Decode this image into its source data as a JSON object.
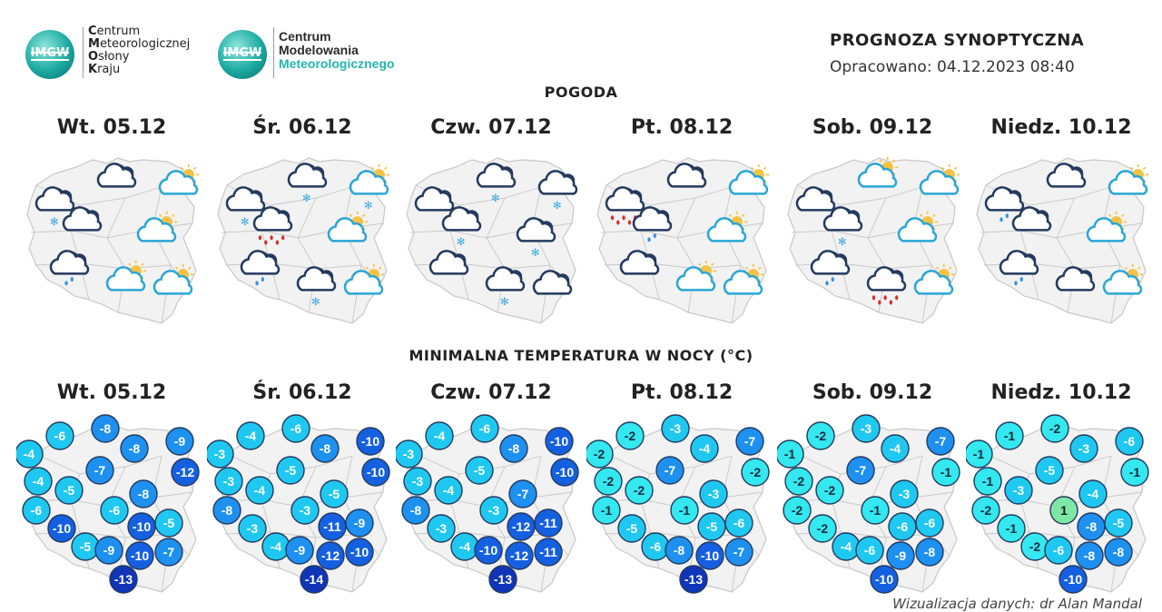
{
  "logos": {
    "imgw_badge": "IMGW",
    "cmok": [
      {
        "first": "C",
        "rest": "entrum"
      },
      {
        "first": "M",
        "rest": "eteorologicznej"
      },
      {
        "first": "O",
        "rest": "słony"
      },
      {
        "first": "K",
        "rest": "raju"
      }
    ],
    "cmm_line1": "Centrum",
    "cmm_line2": "Modelowania",
    "cmm_line3": "Meteorologicznego"
  },
  "header": {
    "title": "PROGNOZA SYNOPTYCZNA",
    "prepared": "Opracowano: 04.12.2023 08:40"
  },
  "sections": {
    "weather": "POGODA",
    "temperature": "MINIMALNA TEMPERATURA W NOCY (°C)"
  },
  "days": [
    "Wt. 05.12",
    "Śr. 06.12",
    "Czw. 07.12",
    "Pt. 08.12",
    "Sob. 09.12",
    "Niedz. 10.12"
  ],
  "weather_icons": [
    [
      "cloudy-snow",
      "cloudy-partly",
      "partly-cloudy-sun",
      "cloudy-partly",
      "partly-cloudy-sun",
      "cloudy-rain",
      "partly-cloudy-sun",
      "partly-cloudy-sun"
    ],
    [
      "cloudy-snow",
      "cloudy-snow",
      "partly-cloudy-sun-snow",
      "cloudy-rain-heavy",
      "partly-cloudy-sun",
      "cloudy-rain",
      "cloudy-snow",
      "partly-cloudy-sun"
    ],
    [
      "cloudy",
      "cloudy-snow",
      "cloudy-snow",
      "cloudy-snow",
      "cloudy-snow",
      "cloudy",
      "cloudy-snow",
      "cloudy"
    ],
    [
      "cloudy-rain-heavy",
      "cloudy-partly",
      "partly-cloudy-sun",
      "cloudy-rain",
      "partly-cloudy-sun",
      "cloudy-partly",
      "partly-cloudy-sun",
      "partly-cloudy-sun"
    ],
    [
      "cloudy",
      "partly-cloudy-sun",
      "partly-cloudy-sun",
      "cloudy-snow",
      "partly-cloudy-sun",
      "cloudy-rain",
      "cloudy-rain-heavy",
      "partly-cloudy-sun"
    ],
    [
      "cloudy-rain",
      "cloudy-partly",
      "partly-cloudy-sun",
      "cloudy-partly",
      "partly-cloudy-sun",
      "cloudy-rain",
      "cloudy-partly",
      "partly-cloudy-sun"
    ]
  ],
  "temperatures": [
    [
      -6,
      -8,
      -4,
      -8,
      -9,
      -4,
      -7,
      -12,
      -5,
      -8,
      -6,
      -6,
      -10,
      -5,
      -10,
      -5,
      -9,
      -10,
      -7,
      -13
    ],
    [
      -4,
      -6,
      -3,
      -8,
      -10,
      -3,
      -5,
      -10,
      -4,
      -5,
      -8,
      -3,
      -11,
      -9,
      -3,
      -4,
      -9,
      -12,
      -10,
      -14
    ],
    [
      -4,
      -6,
      -3,
      -8,
      -10,
      -3,
      -5,
      -10,
      -4,
      -7,
      -8,
      -3,
      -12,
      -11,
      -3,
      -4,
      -10,
      -12,
      -11,
      -13
    ],
    [
      -2,
      -3,
      -2,
      -4,
      -7,
      -2,
      -7,
      -2,
      -2,
      -3,
      -1,
      -1,
      -5,
      -6,
      -5,
      -6,
      -8,
      -10,
      -7,
      -13
    ],
    [
      -2,
      -3,
      -1,
      -4,
      -7,
      -2,
      -7,
      -1,
      -2,
      -3,
      -2,
      -1,
      -6,
      -6,
      -2,
      -4,
      -6,
      -9,
      -8,
      -10
    ],
    [
      -1,
      -2,
      -1,
      -3,
      -6,
      -1,
      -5,
      -1,
      -3,
      -4,
      -2,
      1,
      -8,
      -5,
      -1,
      -2,
      -6,
      -8,
      -8,
      -10
    ]
  ],
  "credit": "Wizualizacja danych: dr Alan Mandal",
  "colors": {
    "outline": "#243a5e",
    "map_fill": "#f2f2f2",
    "map_stroke": "#c8c8c8",
    "t_warm": "#7fe7a6",
    "t_mild": "#33e8ef",
    "t_cool": "#1fc8f0",
    "t_cold": "#1e90f0",
    "t_colder": "#1560e0",
    "t_coldest": "#1035b8"
  }
}
